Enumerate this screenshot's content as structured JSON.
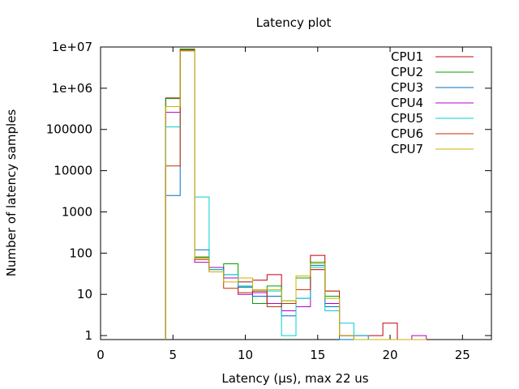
{
  "chart_data": {
    "type": "line",
    "title": "Latency plot",
    "xlabel": "Latency (µs), max 22 us",
    "ylabel": "Number of latency samples",
    "xlim": [
      0,
      27
    ],
    "ylim": [
      0.8,
      10000000
    ],
    "y_scale": "log",
    "step_style": "histogram",
    "grid": false,
    "legend_position": "top-right",
    "x_ticks": [
      0,
      5,
      10,
      15,
      20,
      25
    ],
    "x_tick_labels": [
      "0",
      "5",
      "10",
      "15",
      "20",
      "25"
    ],
    "y_ticks": [
      1,
      10,
      100,
      1000,
      10000,
      100000,
      1000000,
      10000000
    ],
    "y_tick_labels": [
      "1",
      "10",
      "100",
      "1000",
      "10000",
      "100000",
      "1e+06",
      "1e+07"
    ],
    "x": [
      5,
      6,
      7,
      8,
      9,
      10,
      11,
      12,
      13,
      14,
      15,
      16,
      17,
      18,
      19,
      20,
      21,
      22
    ],
    "series": [
      {
        "name": "CPU1",
        "color": "#c0000c",
        "values": [
          580000,
          8500000,
          80,
          40,
          25,
          20,
          22,
          30,
          6,
          28,
          88,
          12,
          1,
          1,
          1,
          2,
          0,
          0
        ]
      },
      {
        "name": "CPU2",
        "color": "#009f00",
        "values": [
          560000,
          9000000,
          80,
          40,
          55,
          15,
          6,
          16,
          7,
          25,
          60,
          9,
          1,
          0,
          0,
          0,
          0,
          0
        ]
      },
      {
        "name": "CPU3",
        "color": "#0070c0",
        "values": [
          2500,
          8000000,
          120,
          45,
          30,
          15,
          9,
          9,
          3,
          8,
          50,
          5,
          0,
          0,
          0,
          0,
          0,
          0
        ]
      },
      {
        "name": "CPU4",
        "color": "#b000c8",
        "values": [
          260000,
          8500000,
          60,
          45,
          25,
          10,
          11,
          6,
          4,
          5,
          40,
          6,
          1,
          1,
          0,
          0,
          0,
          1
        ]
      },
      {
        "name": "CPU5",
        "color": "#00d0d0",
        "values": [
          115000,
          8000000,
          2300,
          40,
          30,
          16,
          12,
          12,
          1,
          8,
          45,
          4,
          2,
          1,
          0,
          0,
          0,
          0
        ]
      },
      {
        "name": "CPU6",
        "color": "#c03000",
        "values": [
          13000,
          8500000,
          70,
          35,
          14,
          11,
          12,
          5,
          6,
          13,
          40,
          12,
          1,
          0,
          0,
          0,
          0,
          0
        ]
      },
      {
        "name": "CPU7",
        "color": "#c8b400",
        "values": [
          360000,
          8000000,
          75,
          35,
          20,
          25,
          13,
          13,
          7,
          28,
          55,
          8,
          1,
          0,
          0,
          0,
          0,
          0
        ]
      }
    ]
  }
}
